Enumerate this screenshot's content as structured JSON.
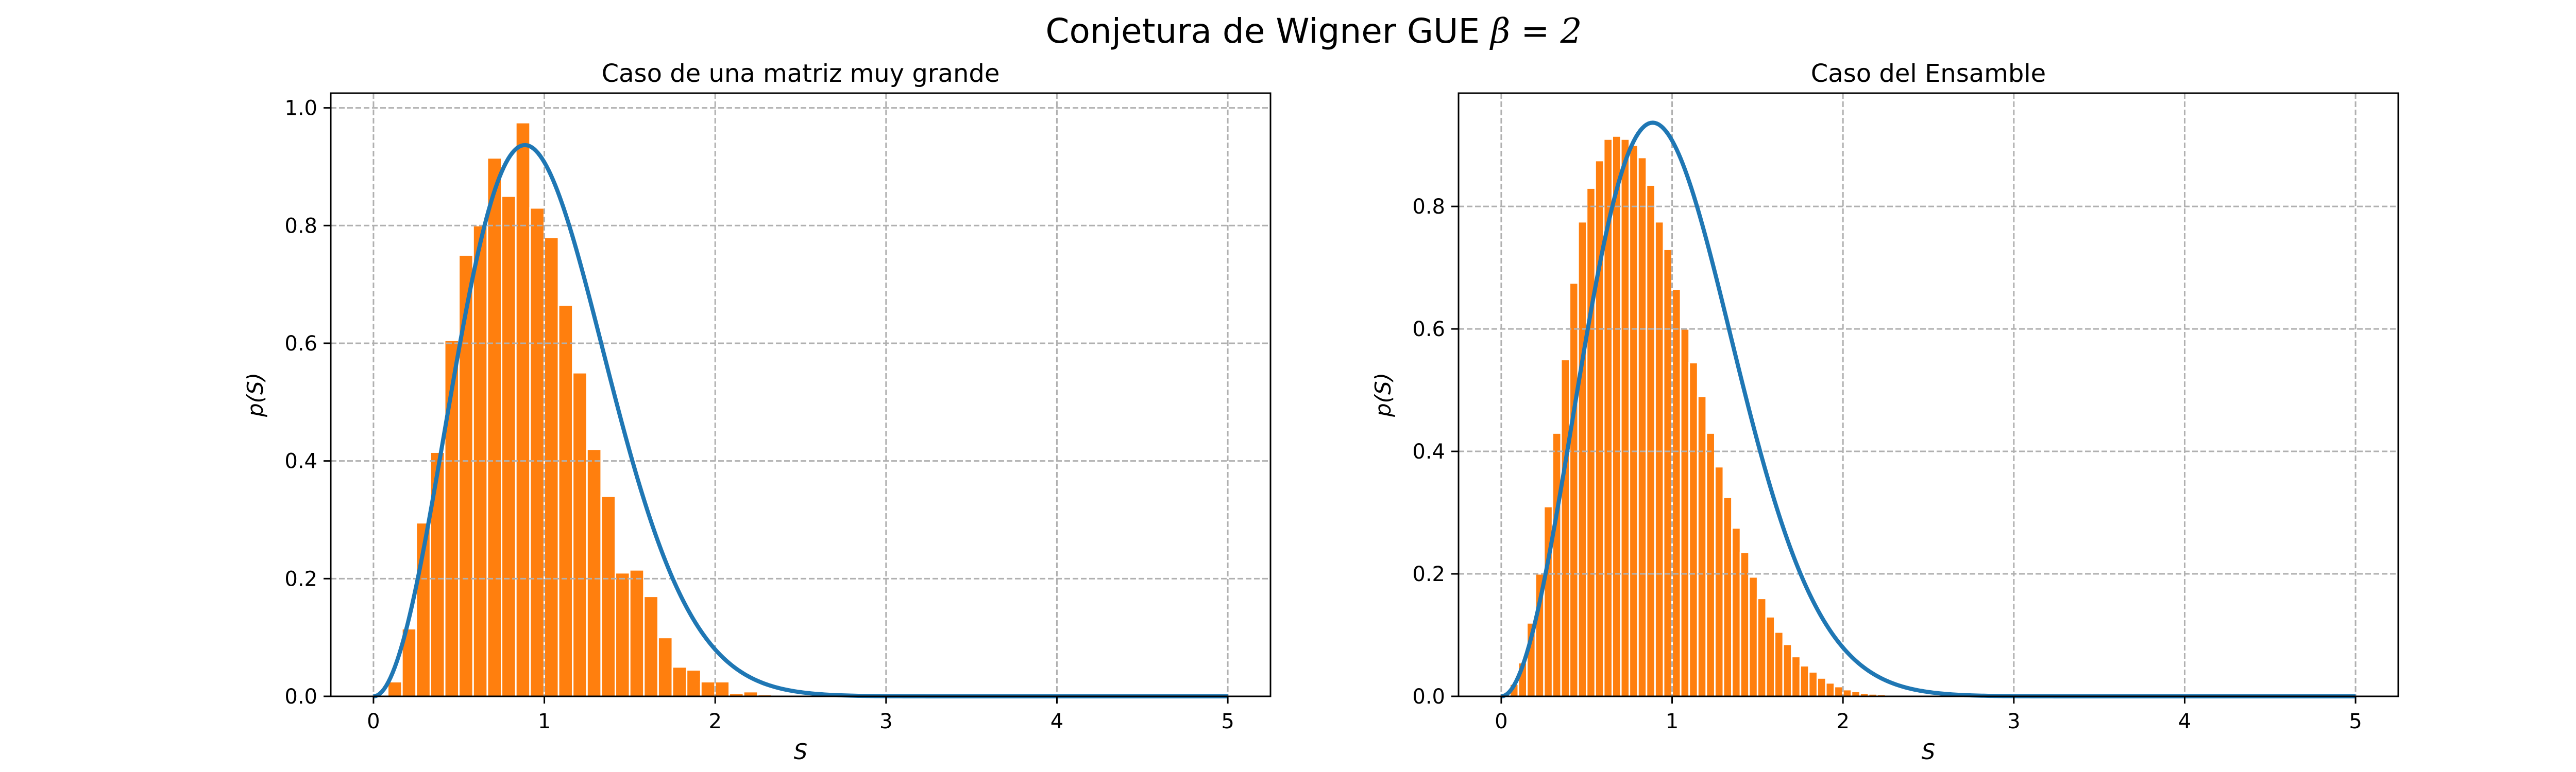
{
  "figure": {
    "suptitle_prefix": "Conjetura de Wigner GUE ",
    "suptitle_math": "β = 2"
  },
  "colors": {
    "bars": "#ff7f0e",
    "bar_edge": "#ffffff",
    "curve": "#1f77b4",
    "grid": "#b0b0b0"
  },
  "chart_data": [
    {
      "type": "bar",
      "title": "Caso de una matriz muy grande",
      "xlabel": "S",
      "ylabel": "p(S)",
      "xlim": [
        -0.25,
        5.25
      ],
      "ylim": [
        0,
        1.025
      ],
      "xticks": [
        0,
        1,
        2,
        3,
        4,
        5
      ],
      "yticks": [
        0.0,
        0.2,
        0.4,
        0.6,
        0.8,
        1.0
      ],
      "grid": true,
      "histogram": {
        "bin_start": 0.0,
        "bin_width": 0.0833,
        "values": [
          0.0,
          0.025,
          0.115,
          0.295,
          0.415,
          0.605,
          0.75,
          0.8,
          0.915,
          0.85,
          0.975,
          0.83,
          0.78,
          0.665,
          0.55,
          0.42,
          0.34,
          0.21,
          0.215,
          0.17,
          0.1,
          0.05,
          0.045,
          0.025,
          0.025,
          0.005,
          0.008,
          0.003,
          0.002,
          0.001
        ]
      },
      "curve": {
        "name": "GUE",
        "formula": "(32/pi^2) S^2 exp(-4 S^2/pi)",
        "x_range": [
          0,
          5
        ]
      }
    },
    {
      "type": "bar",
      "title": "Caso del Ensamble",
      "xlabel": "S",
      "ylabel": "p(S)",
      "xlim": [
        -0.25,
        5.25
      ],
      "ylim": [
        0,
        0.985
      ],
      "xticks": [
        0,
        1,
        2,
        3,
        4,
        5
      ],
      "yticks": [
        0.0,
        0.2,
        0.4,
        0.6,
        0.8
      ],
      "grid": true,
      "histogram": {
        "bin_start": 0.0,
        "bin_width": 0.05,
        "values": [
          0.005,
          0.02,
          0.055,
          0.12,
          0.2,
          0.31,
          0.43,
          0.55,
          0.675,
          0.775,
          0.83,
          0.875,
          0.91,
          0.915,
          0.91,
          0.9,
          0.88,
          0.835,
          0.775,
          0.73,
          0.665,
          0.6,
          0.545,
          0.49,
          0.43,
          0.375,
          0.325,
          0.275,
          0.235,
          0.195,
          0.16,
          0.13,
          0.105,
          0.085,
          0.065,
          0.05,
          0.04,
          0.03,
          0.022,
          0.016,
          0.011,
          0.008,
          0.005,
          0.004,
          0.003,
          0.002,
          0.001,
          0.001
        ]
      },
      "curve": {
        "name": "GUE",
        "formula": "(32/pi^2) S^2 exp(-4 S^2/pi)",
        "x_range": [
          0,
          5
        ]
      }
    }
  ]
}
